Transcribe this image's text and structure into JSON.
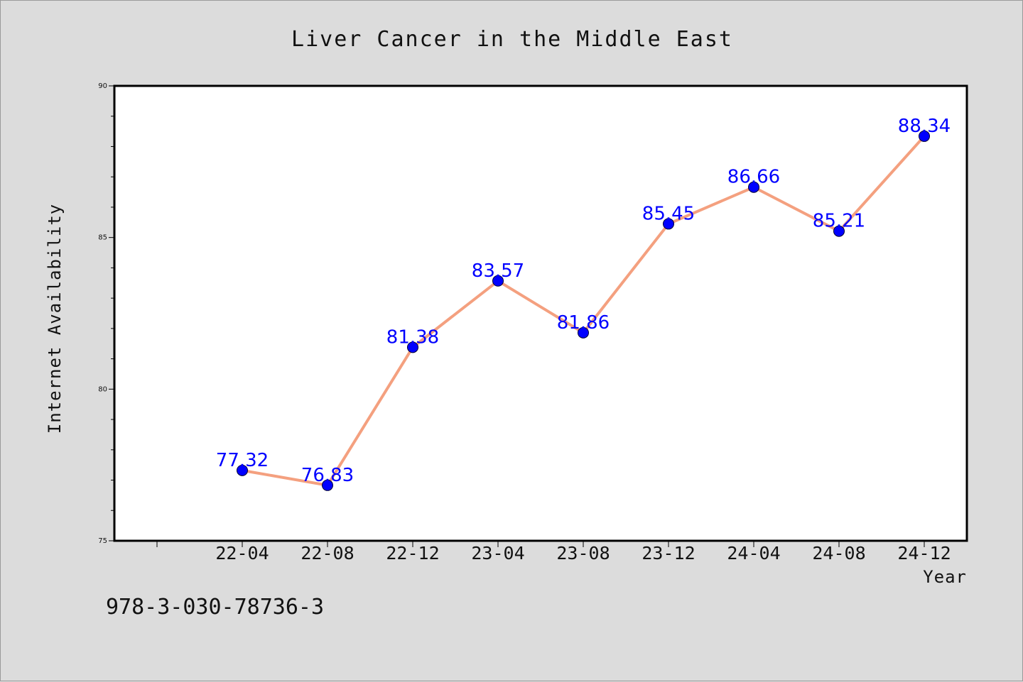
{
  "chart_data": {
    "type": "line",
    "title": "Liver Cancer in the Middle East",
    "xlabel": "Year",
    "ylabel": "Internet Availability",
    "categories": [
      "22-04",
      "22-08",
      "22-12",
      "23-04",
      "23-08",
      "23-12",
      "24-04",
      "24-08",
      "24-12"
    ],
    "values": [
      77.32,
      76.83,
      81.38,
      83.57,
      81.86,
      85.45,
      86.66,
      85.21,
      88.34
    ],
    "data_labels": [
      "77.32",
      "76.83",
      "81.38",
      "83.57",
      "81.86",
      "85.45",
      "86.66",
      "85.21",
      "88.34"
    ],
    "ylim": [
      75,
      90
    ],
    "yticks": [
      75,
      80,
      85,
      90
    ],
    "ytick_labels": [
      "75",
      "80",
      "85",
      "90"
    ],
    "grid": false,
    "legend": "none",
    "line_color": "#f4a07f",
    "marker_color": "#0000ff",
    "label_color": "#0000ff"
  },
  "footnote": "978-3-030-78736-3"
}
